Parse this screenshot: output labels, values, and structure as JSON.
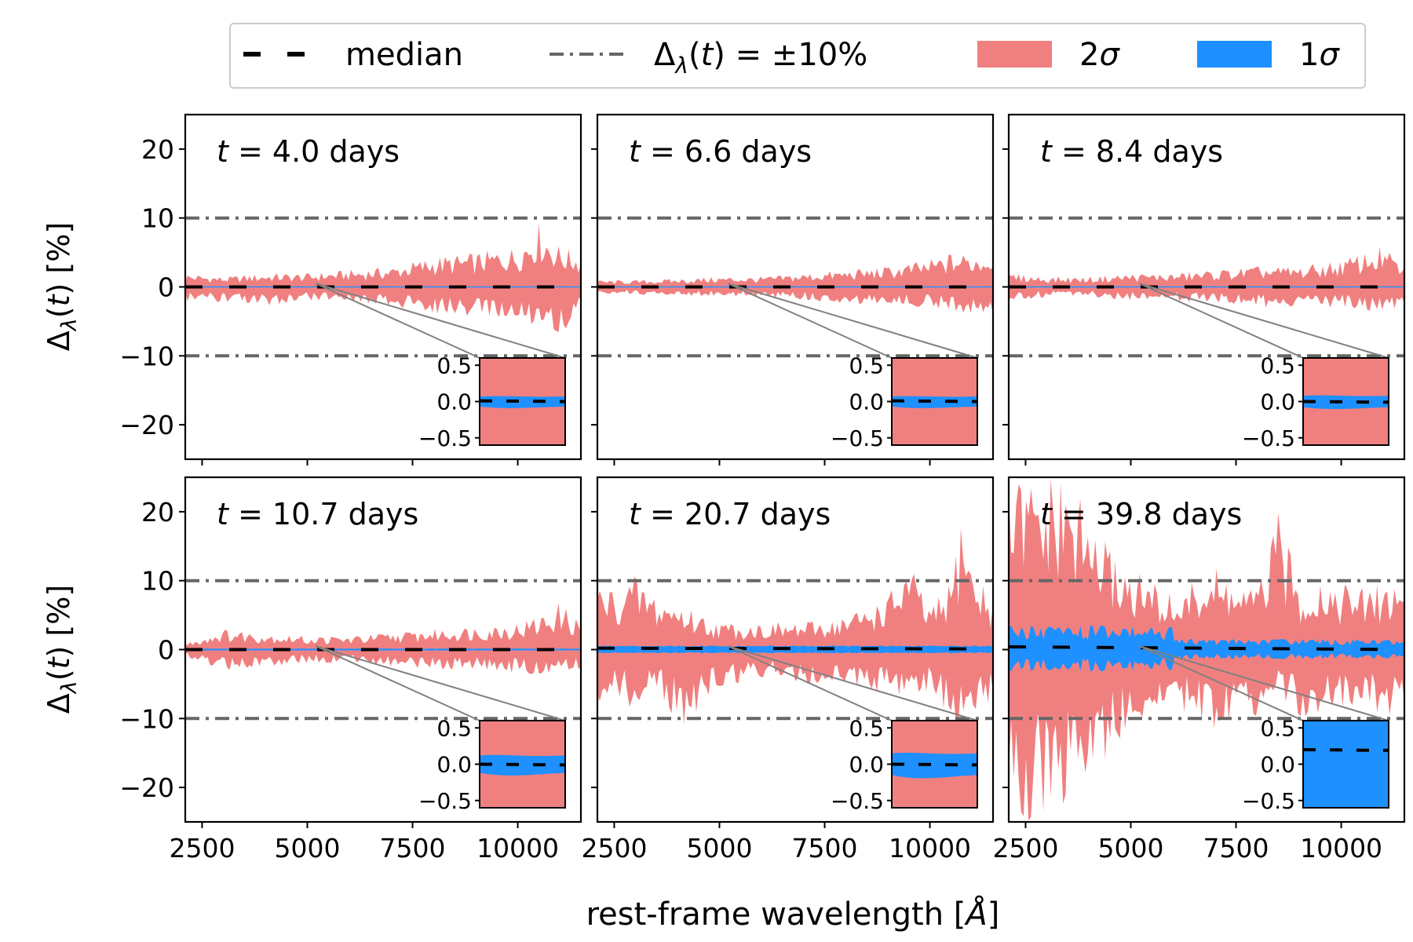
{
  "legend": {
    "entries": [
      {
        "label": "median",
        "kind": "median",
        "color": "#000000"
      },
      {
        "label": "Δ_λ(t) = ±10%",
        "kind": "threshold",
        "color": "#666666"
      },
      {
        "label": "2σ",
        "kind": "band2",
        "color": "#f08080"
      },
      {
        "label": "1σ",
        "kind": "band1",
        "color": "#1e90ff"
      }
    ]
  },
  "figure": {
    "xlabel": "rest-frame wavelength [Å]",
    "ylabel": "Δ_λ(t) [%]"
  },
  "colors": {
    "band2": "#f08080",
    "band1": "#1e90ff",
    "median": "#000000",
    "threshold": "#666666",
    "connector": "#808080"
  },
  "chart_data": [
    {
      "type": "area",
      "panel": "t=4.0",
      "title": "t = 4.0 days",
      "days": 4.0,
      "xlim": [
        2100,
        11500
      ],
      "ylim": [
        -25,
        25
      ],
      "xticks": [
        2500,
        5000,
        7500,
        10000
      ],
      "yticks": [
        -20,
        -10,
        0,
        10,
        20
      ],
      "threshold": [
        -10,
        10
      ],
      "band2_envelope": {
        "x": [
          2100,
          3000,
          4000,
          5000,
          6000,
          7000,
          8000,
          9000,
          10000,
          10500,
          11000,
          11500
        ],
        "upper": [
          2,
          1.5,
          2,
          2,
          2.5,
          3,
          4.5,
          5,
          6,
          9.5,
          6,
          5
        ],
        "lower": [
          -2,
          -2.5,
          -3,
          -2,
          -2,
          -3,
          -4,
          -4.5,
          -5,
          -6,
          -7,
          -4
        ]
      },
      "band1_halfwidth": 0.1,
      "median": {
        "x": [
          2100,
          11500
        ],
        "y": [
          0,
          0
        ]
      },
      "inset": {
        "ylim": [
          -0.6,
          0.6
        ],
        "yticks": [
          -0.5,
          0.0,
          0.5
        ],
        "band1_halfwidth": 0.07,
        "median_y": 0.01,
        "band2_fills": true
      }
    },
    {
      "type": "area",
      "panel": "t=6.6",
      "title": "t = 6.6 days",
      "days": 6.6,
      "xlim": [
        2100,
        11500
      ],
      "ylim": [
        -25,
        25
      ],
      "xticks": [
        2500,
        5000,
        7500,
        10000
      ],
      "yticks": [
        -20,
        -10,
        0,
        10,
        20
      ],
      "threshold": [
        -10,
        10
      ],
      "band2_envelope": {
        "x": [
          2100,
          3000,
          4000,
          5000,
          6000,
          7000,
          8000,
          9000,
          10000,
          10500,
          11000,
          11500
        ],
        "upper": [
          1,
          1,
          1.2,
          1.5,
          1.5,
          2,
          2.5,
          3,
          4,
          5,
          5,
          5
        ],
        "lower": [
          -1,
          -1.2,
          -1.2,
          -1.5,
          -1.5,
          -2,
          -2.5,
          -3,
          -3,
          -3.5,
          -4,
          -4
        ]
      },
      "band1_halfwidth": 0.1,
      "median": {
        "x": [
          2100,
          11500
        ],
        "y": [
          0,
          0
        ]
      },
      "inset": {
        "ylim": [
          -0.6,
          0.6
        ],
        "yticks": [
          -0.5,
          0.0,
          0.5
        ],
        "band1_halfwidth": 0.07,
        "median_y": 0.01,
        "band2_fills": true
      }
    },
    {
      "type": "area",
      "panel": "t=8.4",
      "title": "t = 8.4 days",
      "days": 8.4,
      "xlim": [
        2100,
        11500
      ],
      "ylim": [
        -25,
        25
      ],
      "xticks": [
        2500,
        5000,
        7500,
        10000
      ],
      "yticks": [
        -20,
        -10,
        0,
        10,
        20
      ],
      "threshold": [
        -10,
        10
      ],
      "band2_envelope": {
        "x": [
          2100,
          3000,
          4000,
          5000,
          6000,
          7000,
          8000,
          9000,
          10000,
          10500,
          11000,
          11500
        ],
        "upper": [
          2,
          1.5,
          1.5,
          2,
          2,
          2.5,
          3,
          3,
          4,
          5,
          6,
          3
        ],
        "lower": [
          -2,
          -1.5,
          -1.5,
          -2,
          -2,
          -2.5,
          -3,
          -3,
          -3,
          -4,
          -4,
          -3
        ]
      },
      "band1_halfwidth": 0.1,
      "median": {
        "x": [
          2100,
          11500
        ],
        "y": [
          0,
          0
        ]
      },
      "inset": {
        "ylim": [
          -0.6,
          0.6
        ],
        "yticks": [
          -0.5,
          0.0,
          0.5
        ],
        "band1_halfwidth": 0.08,
        "median_y": 0.0,
        "band2_fills": true
      }
    },
    {
      "type": "area",
      "panel": "t=10.7",
      "title": "t = 10.7 days",
      "days": 10.7,
      "xlim": [
        2100,
        11500
      ],
      "ylim": [
        -25,
        25
      ],
      "xticks": [
        2500,
        5000,
        7500,
        10000
      ],
      "yticks": [
        -20,
        -10,
        0,
        10,
        20
      ],
      "threshold": [
        -10,
        10
      ],
      "band2_envelope": {
        "x": [
          2100,
          3000,
          4000,
          5000,
          6000,
          7000,
          8000,
          9000,
          10000,
          10500,
          11000,
          11500
        ],
        "upper": [
          1,
          3,
          2.5,
          2,
          2,
          2.5,
          3,
          3.5,
          4,
          5,
          7,
          4
        ],
        "lower": [
          -1,
          -3,
          -2.5,
          -2,
          -2,
          -2.5,
          -3,
          -3,
          -3.5,
          -4,
          -3,
          -3
        ]
      },
      "band1_halfwidth": 0.15,
      "median": {
        "x": [
          2100,
          11500
        ],
        "y": [
          0,
          0
        ]
      },
      "inset": {
        "ylim": [
          -0.6,
          0.6
        ],
        "yticks": [
          -0.5,
          0.0,
          0.5
        ],
        "band1_halfwidth": 0.12,
        "median_y": 0.0,
        "band2_fills": true
      }
    },
    {
      "type": "area",
      "panel": "t=20.7",
      "title": "t = 20.7 days",
      "days": 20.7,
      "xlim": [
        2100,
        11500
      ],
      "ylim": [
        -25,
        25
      ],
      "xticks": [
        2500,
        5000,
        7500,
        10000
      ],
      "yticks": [
        -20,
        -10,
        0,
        10,
        20
      ],
      "threshold": [
        -10,
        10
      ],
      "band2_envelope": {
        "x": [
          2100,
          2500,
          3000,
          3500,
          4000,
          5000,
          6000,
          7000,
          8000,
          9000,
          9500,
          10000,
          10500,
          10800,
          11000,
          11500
        ],
        "upper": [
          10,
          9,
          11,
          8,
          7,
          4,
          4,
          4,
          5,
          8,
          13,
          6,
          10,
          23,
          12,
          8
        ],
        "lower": [
          -8,
          -7,
          -9,
          -6,
          -12,
          -6,
          -4,
          -5,
          -5,
          -7,
          -8,
          -6,
          -10,
          -15,
          -12,
          -7
        ]
      },
      "band1_halfwidth": 0.6,
      "median": {
        "x": [
          2100,
          11500
        ],
        "y": [
          0.2,
          0.1
        ]
      },
      "inset": {
        "ylim": [
          -0.6,
          0.6
        ],
        "yticks": [
          -0.5,
          0.0,
          0.5
        ],
        "band1_halfwidth": 0.15,
        "median_y": 0.0,
        "band2_fills": true
      }
    },
    {
      "type": "area",
      "panel": "t=39.8",
      "title": "t = 39.8 days",
      "days": 39.8,
      "xlim": [
        2100,
        11500
      ],
      "ylim": [
        -25,
        25
      ],
      "xticks": [
        2500,
        5000,
        7500,
        10000
      ],
      "yticks": [
        -20,
        -10,
        0,
        10,
        20
      ],
      "threshold": [
        -10,
        10
      ],
      "band2_envelope": {
        "x": [
          2100,
          2500,
          3000,
          3500,
          4000,
          4500,
          5000,
          5500,
          6000,
          6500,
          7000,
          7500,
          8000,
          8500,
          9000,
          9500,
          10000,
          10500,
          11000,
          11500
        ],
        "upper": [
          25,
          25,
          25,
          25,
          20,
          15,
          12,
          10,
          8,
          10,
          12,
          10,
          9,
          20,
          10,
          11,
          10,
          9,
          10,
          10
        ],
        "lower": [
          -25,
          -25,
          -25,
          -22,
          -20,
          -15,
          -12,
          -10,
          -8,
          -10,
          -12,
          -11,
          -10,
          -8,
          -10,
          -10,
          -9,
          -8,
          -10,
          -9
        ]
      },
      "band1_halfwidth": 3.5,
      "median": {
        "x": [
          2100,
          11500
        ],
        "y": [
          0.4,
          0.0
        ]
      },
      "inset": {
        "ylim": [
          -0.6,
          0.6
        ],
        "yticks": [
          -0.5,
          0.0,
          0.5
        ],
        "band1_halfwidth": 1.0,
        "median_y": 0.2,
        "band2_fills": true
      }
    }
  ]
}
